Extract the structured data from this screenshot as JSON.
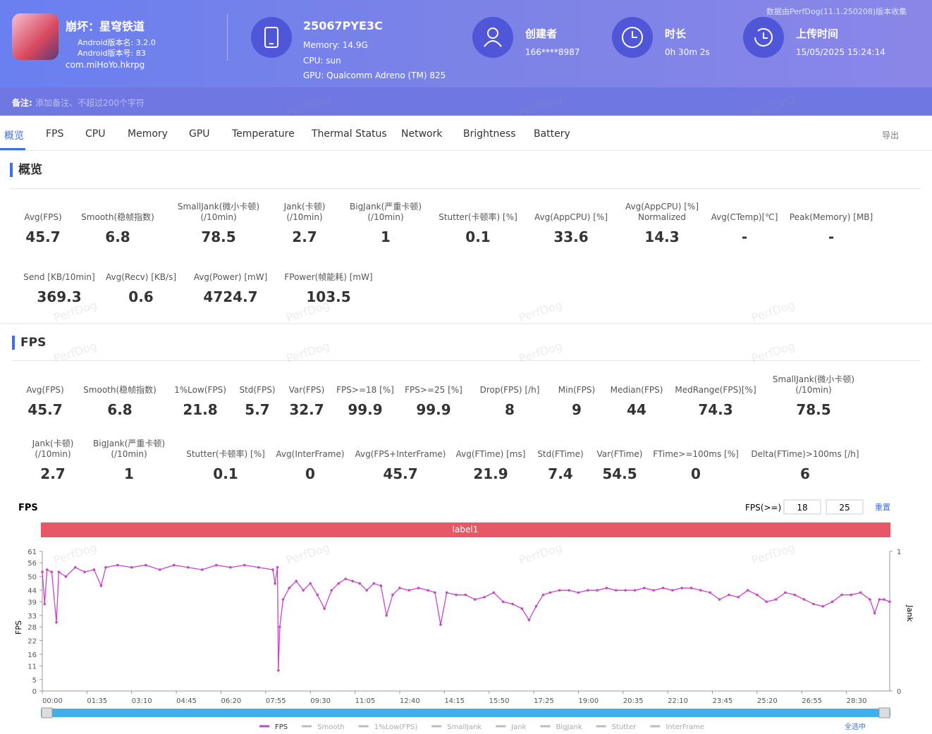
{
  "header": {
    "app_name": "崩坏：星穹铁道",
    "android_version_name": "Android版本名: 3.2.0",
    "android_version_code": "Android版本号: 83",
    "package": "com.miHoYo.hkrpg",
    "device": "25067PYE3C",
    "memory": "Memory: 14.9G",
    "cpu": "CPU: sun",
    "gpu": "GPU: Qualcomm Adreno (TM) 825",
    "creator_label": "创建者",
    "creator": "166****8987",
    "duration_label": "时长",
    "duration": "0h 30m 2s",
    "upload_label": "上传时间",
    "upload_time": "15/05/2025 15:24:14",
    "source_note": "数据由PerfDog(11.1.250208)版本收集",
    "remark_label": "备注:",
    "remark_placeholder": "添加备注、不超过200个字符"
  },
  "watermark": "PerfDog",
  "tabs": [
    "概览",
    "FPS",
    "CPU",
    "Memory",
    "GPU",
    "Temperature",
    "Thermal Status",
    "Network",
    "Brightness",
    "Battery"
  ],
  "export": "导出",
  "overview": {
    "title": "概览",
    "rows": [
      [
        {
          "label": "Avg(FPS)",
          "value": 45.7
        },
        {
          "label": "Smooth(稳帧指数)",
          "value": 6.8
        },
        {
          "label": "SmallJank(微小卡顿)\n(/10min)",
          "value": 78.5
        },
        {
          "label": "Jank(卡顿)\n(/10min)",
          "value": 2.7
        },
        {
          "label": "BigJank(严重卡顿)\n(/10min)",
          "value": 1
        },
        {
          "label": "Stutter(卡顿率) [%]",
          "value": 0.1
        },
        {
          "label": "Avg(AppCPU) [%]",
          "value": 33.6
        },
        {
          "label": "Avg(AppCPU) [%]\nNormalized",
          "value": 14.3
        },
        {
          "label": "Avg(CTemp)[℃]",
          "value": "-"
        },
        {
          "label": "Peak(Memory) [MB]",
          "value": "-"
        }
      ],
      [
        {
          "label": "Send [KB/10min]",
          "value": 369.3
        },
        {
          "label": "Avg(Recv) [KB/s]",
          "value": 0.6
        },
        {
          "label": "Avg(Power) [mW]",
          "value": 4724.7
        },
        {
          "label": "FPower(帧能耗) [mW]",
          "value": 103.5
        }
      ]
    ]
  },
  "fps_section": {
    "title": "FPS",
    "rows": [
      [
        {
          "label": "Avg(FPS)",
          "value": 45.7
        },
        {
          "label": "Smooth(稳帧指数)",
          "value": 6.8
        },
        {
          "label": "1%Low(FPS)",
          "value": 21.8
        },
        {
          "label": "Std(FPS)",
          "value": 5.7
        },
        {
          "label": "Var(FPS)",
          "value": 32.7
        },
        {
          "label": "FPS>=18 [%]",
          "value": 99.9
        },
        {
          "label": "FPS>=25 [%]",
          "value": 99.9
        },
        {
          "label": "Drop(FPS) [/h]",
          "value": 8
        },
        {
          "label": "Min(FPS)",
          "value": 9
        },
        {
          "label": "Median(FPS)",
          "value": 44
        },
        {
          "label": "MedRange(FPS)[%]",
          "value": 74.3
        },
        {
          "label": "SmallJank(微小卡顿)\n(/10min)",
          "value": 78.5
        }
      ],
      [
        {
          "label": "Jank(卡顿)\n(/10min)",
          "value": 2.7
        },
        {
          "label": "BigJank(严重卡顿)\n(/10min)",
          "value": 1
        },
        {
          "label": "Stutter(卡顿率) [%]",
          "value": 0.1
        },
        {
          "label": "Avg(InterFrame)",
          "value": 0
        },
        {
          "label": "Avg(FPS+InterFrame)",
          "value": 45.7
        },
        {
          "label": "Avg(FTime) [ms]",
          "value": 21.9
        },
        {
          "label": "Std(FTime)",
          "value": 7.4
        },
        {
          "label": "Var(FTime)",
          "value": 54.5
        },
        {
          "label": "FTime>=100ms [%]",
          "value": 0
        },
        {
          "label": "Delta(FTime)>100ms [/h]",
          "value": 6
        }
      ]
    ]
  },
  "chart_data": {
    "type": "line",
    "title": "FPS",
    "threshold_label": "FPS(>=)",
    "thresholds": [
      18,
      25
    ],
    "reset": "重置",
    "band_label": "label1",
    "y_label": "FPS",
    "y2_label": "Jank",
    "select_all": "全选中",
    "x": [
      0,
      5,
      10,
      20,
      30,
      35,
      50,
      70,
      90,
      110,
      125,
      135,
      160,
      190,
      220,
      250,
      280,
      310,
      340,
      370,
      400,
      430,
      460,
      490,
      495,
      500,
      502,
      505,
      512,
      525,
      540,
      555,
      570,
      585,
      600,
      615,
      630,
      645,
      660,
      675,
      690,
      705,
      720,
      732,
      745,
      760,
      780,
      800,
      820,
      835,
      847,
      860,
      880,
      900,
      920,
      940,
      960,
      980,
      1000,
      1020,
      1035,
      1050,
      1065,
      1080,
      1100,
      1120,
      1140,
      1160,
      1180,
      1200,
      1220,
      1240,
      1260,
      1280,
      1300,
      1320,
      1340,
      1360,
      1380,
      1400,
      1420,
      1440,
      1460,
      1480,
      1500,
      1520,
      1540,
      1560,
      1580,
      1600,
      1620,
      1640,
      1660,
      1680,
      1700,
      1720,
      1740,
      1760,
      1770,
      1780,
      1790,
      1802
    ],
    "series": [
      {
        "name": "FPS",
        "color": "#c845c8",
        "values": [
          52,
          38,
          53,
          52,
          30,
          52,
          50,
          54,
          52,
          53,
          46,
          54,
          55,
          54,
          55,
          53,
          55,
          54,
          53,
          55,
          54,
          55,
          54,
          53,
          47,
          54,
          9,
          28,
          40,
          45,
          48,
          44,
          47,
          42,
          36,
          44,
          47,
          49,
          48,
          47,
          44,
          47,
          46,
          33,
          42,
          45,
          44,
          45,
          44,
          43,
          29,
          43,
          42,
          42,
          40,
          41,
          43,
          39,
          38,
          36,
          31,
          37,
          42,
          43,
          44,
          44,
          43,
          44,
          44,
          45,
          44,
          44,
          44,
          45,
          44,
          45,
          44,
          45,
          45,
          44,
          43,
          40,
          42,
          41,
          44,
          42,
          39,
          40,
          43,
          42,
          40,
          38,
          37,
          39,
          42,
          42,
          43,
          40,
          34,
          40,
          40,
          39
        ]
      },
      {
        "name": "Smooth",
        "color": "#b8bcc6"
      },
      {
        "name": "1%Low(FPS)",
        "color": "#b8bcc6"
      },
      {
        "name": "SmallJank",
        "color": "#b8bcc6"
      },
      {
        "name": "Jank",
        "color": "#b8bcc6",
        "axis": "y2"
      },
      {
        "name": "BigJank",
        "color": "#b8bcc6",
        "axis": "y2"
      },
      {
        "name": "Stutter",
        "color": "#b8bcc6"
      },
      {
        "name": "InterFrame",
        "color": "#b8bcc6"
      }
    ],
    "xlim": [
      0,
      1802
    ],
    "xticks": [
      {
        "value": 0,
        "label": "00:00"
      },
      {
        "value": 95,
        "label": "01:35"
      },
      {
        "value": 190,
        "label": "03:10"
      },
      {
        "value": 285,
        "label": "04:45"
      },
      {
        "value": 380,
        "label": "06:20"
      },
      {
        "value": 475,
        "label": "07:55"
      },
      {
        "value": 570,
        "label": "09:30"
      },
      {
        "value": 665,
        "label": "11:05"
      },
      {
        "value": 760,
        "label": "12:40"
      },
      {
        "value": 855,
        "label": "14:15"
      },
      {
        "value": 950,
        "label": "15:50"
      },
      {
        "value": 1045,
        "label": "17:25"
      },
      {
        "value": 1140,
        "label": "19:00"
      },
      {
        "value": 1235,
        "label": "20:35"
      },
      {
        "value": 1330,
        "label": "22:10"
      },
      {
        "value": 1425,
        "label": "23:45"
      },
      {
        "value": 1520,
        "label": "25:20"
      },
      {
        "value": 1615,
        "label": "26:55"
      },
      {
        "value": 1710,
        "label": "28:30"
      }
    ],
    "ylim": [
      0,
      61
    ],
    "yticks": [
      0,
      5,
      11,
      16,
      22,
      28,
      33,
      39,
      44,
      50,
      56,
      61
    ],
    "y2lim": [
      0,
      1
    ],
    "y2ticks": [
      0,
      1
    ],
    "grid": false
  }
}
